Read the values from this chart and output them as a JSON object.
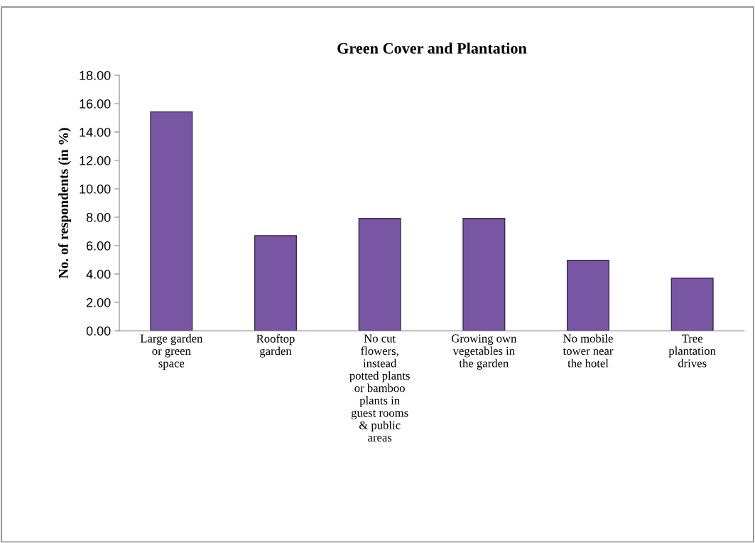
{
  "chart_data": {
    "type": "bar",
    "title": "Green Cover and Plantation",
    "ylabel": "No. of respondents (in %)",
    "categories": [
      "Large garden or green space",
      "Rooftop garden",
      "No cut flowers, instead potted plants or bamboo plants in guest rooms & public areas",
      "Growing own vegetables in the garden",
      "No mobile tower near the hotel",
      "Tree plantation drives"
    ],
    "values": [
      15.42,
      6.7,
      7.91,
      7.91,
      4.96,
      3.7
    ],
    "color": "#7856a3",
    "ylim": [
      0,
      18
    ],
    "yticks": [
      {
        "value": 0,
        "label": "0.00"
      },
      {
        "value": 2,
        "label": "2.00"
      },
      {
        "value": 4,
        "label": "4.00"
      },
      {
        "value": 6,
        "label": "6.00"
      },
      {
        "value": 8,
        "label": "8.00"
      },
      {
        "value": 10,
        "label": "10.00"
      },
      {
        "value": 12,
        "label": "12.00"
      },
      {
        "value": 14,
        "label": "14.00"
      },
      {
        "value": 16,
        "label": "16.00"
      },
      {
        "value": 18,
        "label": "18.00"
      }
    ],
    "grid": false,
    "legend": false
  }
}
